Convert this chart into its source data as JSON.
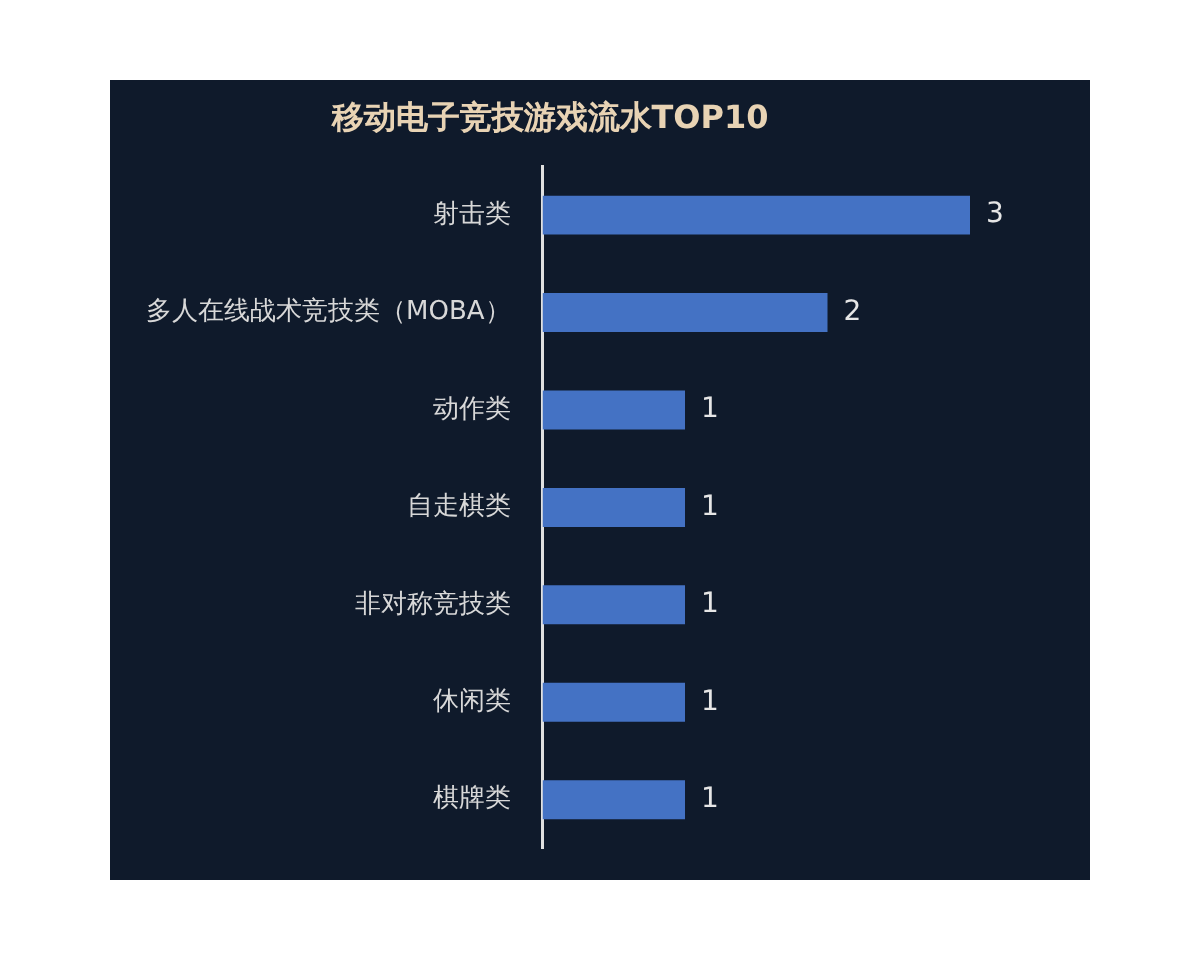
{
  "chart_data": {
    "type": "bar",
    "orientation": "horizontal",
    "title": "移动电子竞技游戏流水TOP10",
    "categories": [
      "射击类",
      "多人在线战术竞技类（MOBA）",
      "动作类",
      "自走棋类",
      "非对称竞技类",
      "休闲类",
      "棋牌类"
    ],
    "values": [
      3,
      2,
      1,
      1,
      1,
      1,
      1
    ],
    "color": "#4472c4",
    "data_labels": true,
    "tick_labels": "y"
  }
}
